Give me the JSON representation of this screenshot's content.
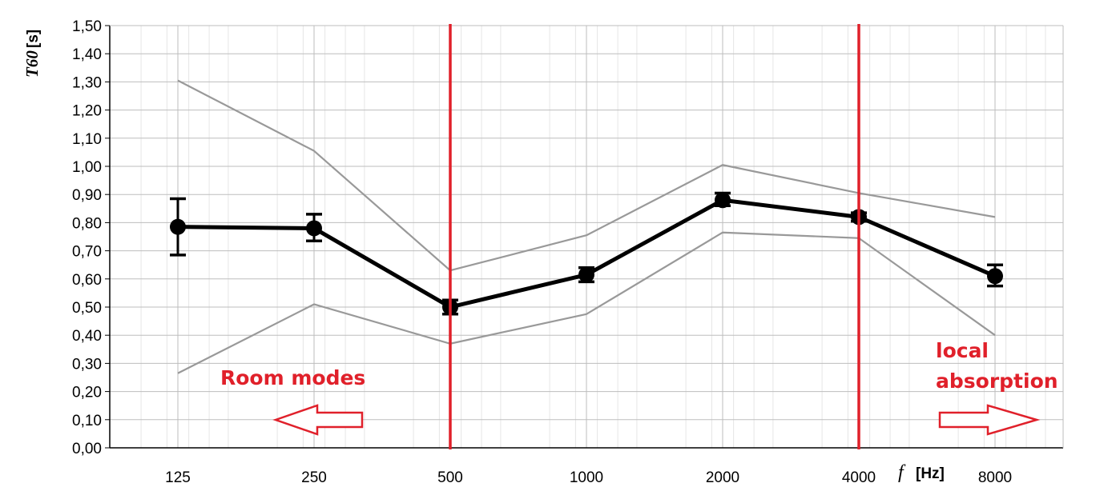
{
  "chart_data": {
    "type": "line",
    "x": [
      "125",
      "250",
      "500",
      "1000",
      "2000",
      "4000",
      "8000"
    ],
    "xlabel_symbol": "f",
    "xlabel_unit": "[Hz]",
    "ylabel_symbol": "T60",
    "ylabel_unit": "[s]",
    "ylim": [
      0,
      1.5
    ],
    "ystep": 0.1,
    "yticks": [
      "0,00",
      "0,10",
      "0,20",
      "0,30",
      "0,40",
      "0,50",
      "0,60",
      "0,70",
      "0,80",
      "0,90",
      "1,00",
      "1,10",
      "1,20",
      "1,30",
      "1,40",
      "1,50"
    ],
    "grid": true,
    "series": [
      {
        "values": [
          0.785,
          0.78,
          0.5,
          0.615,
          0.88,
          0.82,
          0.61
        ],
        "err_low": [
          0.685,
          0.735,
          0.475,
          0.59,
          0.86,
          0.805,
          0.575
        ],
        "err_high": [
          0.885,
          0.83,
          0.525,
          0.64,
          0.905,
          0.835,
          0.65
        ],
        "color": "#000000",
        "marker": "circle"
      },
      {
        "values": [
          1.305,
          1.055,
          0.63,
          0.755,
          1.005,
          0.905,
          0.82
        ],
        "color": "#999999"
      },
      {
        "values": [
          0.265,
          0.51,
          0.37,
          0.475,
          0.765,
          0.745,
          0.4
        ],
        "color": "#999999"
      }
    ],
    "markers": [
      {
        "x_position": 2.5,
        "color": "#e0202a"
      },
      {
        "x_position": 5.5,
        "color": "#e0202a"
      }
    ],
    "annotations": [
      {
        "text": "Room modes",
        "color": "#e0202a",
        "arrow": "left"
      },
      {
        "text_lines": [
          "local",
          "absorption"
        ],
        "color": "#e0202a",
        "arrow": "right"
      }
    ]
  }
}
